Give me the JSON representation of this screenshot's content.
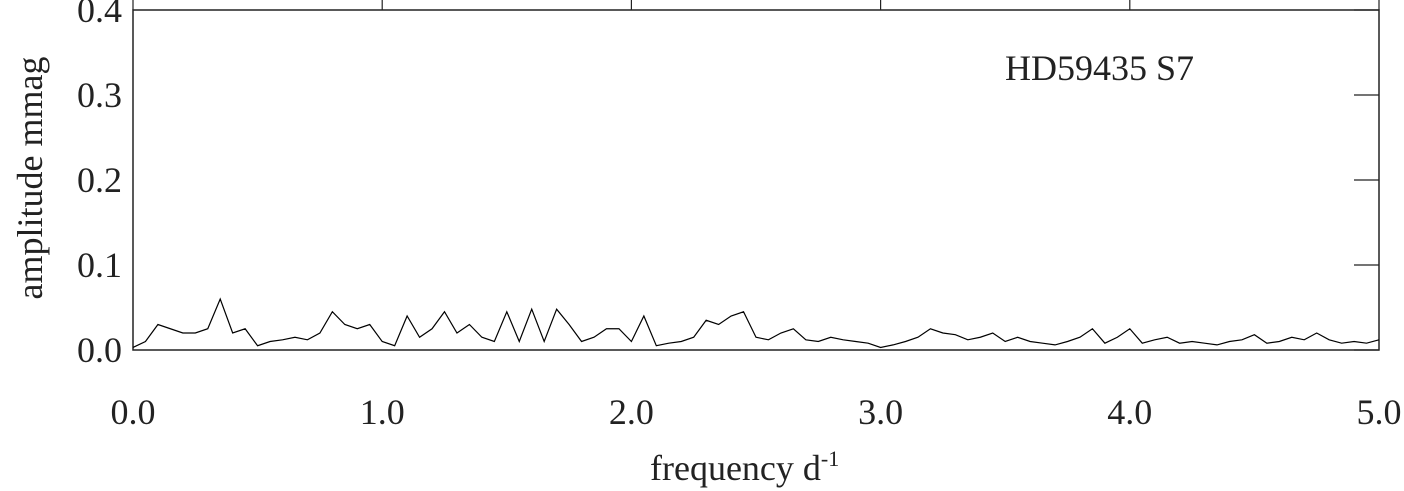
{
  "chart_data": {
    "type": "line",
    "annotation": "HD59435 S7",
    "x_label": "frequency d",
    "x_label_superscript": "-1",
    "y_label": "amplitude mmag",
    "xlim": [
      0,
      5
    ],
    "ylim": [
      0,
      0.4
    ],
    "xticks": [
      {
        "value": 0,
        "label": "0.0"
      },
      {
        "value": 1,
        "label": "1.0"
      },
      {
        "value": 2,
        "label": "2.0"
      },
      {
        "value": 3,
        "label": "3.0"
      },
      {
        "value": 4,
        "label": "4.0"
      },
      {
        "value": 5,
        "label": "5.0"
      }
    ],
    "yticks": [
      {
        "value": 0,
        "label": "0.0"
      },
      {
        "value": 0.1,
        "label": "0.1"
      },
      {
        "value": 0.2,
        "label": "0.2"
      },
      {
        "value": 0.3,
        "label": "0.3"
      },
      {
        "value": 0.4,
        "label": "0.4"
      }
    ],
    "series": [
      {
        "color": "#000000",
        "x": [
          0,
          0.05,
          0.1,
          0.15,
          0.2,
          0.25,
          0.3,
          0.35,
          0.4,
          0.45,
          0.5,
          0.55,
          0.6,
          0.65,
          0.7,
          0.75,
          0.8,
          0.85,
          0.9,
          0.95,
          1,
          1.05,
          1.1,
          1.15,
          1.2,
          1.25,
          1.3,
          1.35,
          1.4,
          1.45,
          1.5,
          1.55,
          1.6,
          1.65,
          1.7,
          1.75,
          1.8,
          1.85,
          1.9,
          1.95,
          2,
          2.05,
          2.1,
          2.15,
          2.2,
          2.25,
          2.3,
          2.35,
          2.4,
          2.45,
          2.5,
          2.55,
          2.6,
          2.65,
          2.7,
          2.75,
          2.8,
          2.85,
          2.9,
          2.95,
          3,
          3.05,
          3.1,
          3.15,
          3.2,
          3.25,
          3.3,
          3.35,
          3.4,
          3.45,
          3.5,
          3.55,
          3.6,
          3.65,
          3.7,
          3.75,
          3.8,
          3.85,
          3.9,
          3.95,
          4,
          4.05,
          4.1,
          4.15,
          4.2,
          4.25,
          4.3,
          4.35,
          4.4,
          4.45,
          4.5,
          4.55,
          4.6,
          4.65,
          4.7,
          4.75,
          4.8,
          4.85,
          4.9,
          4.95,
          5
        ],
        "values": [
          0.003,
          0.01,
          0.03,
          0.025,
          0.02,
          0.02,
          0.025,
          0.06,
          0.02,
          0.025,
          0.005,
          0.01,
          0.012,
          0.015,
          0.012,
          0.02,
          0.045,
          0.03,
          0.025,
          0.03,
          0.01,
          0.005,
          0.04,
          0.015,
          0.025,
          0.045,
          0.02,
          0.03,
          0.015,
          0.01,
          0.045,
          0.01,
          0.048,
          0.01,
          0.048,
          0.03,
          0.01,
          0.015,
          0.025,
          0.025,
          0.01,
          0.04,
          0.005,
          0.008,
          0.01,
          0.015,
          0.035,
          0.03,
          0.04,
          0.045,
          0.015,
          0.012,
          0.02,
          0.025,
          0.012,
          0.01,
          0.015,
          0.012,
          0.01,
          0.008,
          0.003,
          0.006,
          0.01,
          0.015,
          0.025,
          0.02,
          0.018,
          0.012,
          0.015,
          0.02,
          0.01,
          0.015,
          0.01,
          0.008,
          0.006,
          0.01,
          0.015,
          0.025,
          0.008,
          0.015,
          0.025,
          0.008,
          0.012,
          0.015,
          0.008,
          0.01,
          0.008,
          0.006,
          0.01,
          0.012,
          0.018,
          0.008,
          0.01,
          0.015,
          0.012,
          0.02,
          0.012,
          0.008,
          0.01,
          0.008,
          0.012
        ]
      }
    ]
  }
}
